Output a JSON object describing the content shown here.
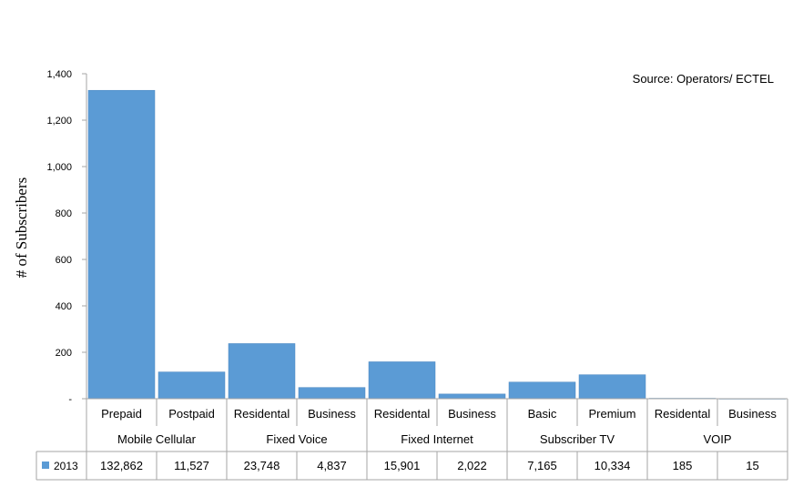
{
  "chart_data": {
    "type": "bar",
    "ylabel": "# of Subscribers",
    "source_note": "Source: Operators/ ECTEL",
    "ylim": [
      0,
      1400
    ],
    "yticks": [
      0,
      200,
      400,
      600,
      800,
      1000,
      1200,
      1400
    ],
    "ytick_labels": [
      "-",
      "200",
      "400",
      "600",
      "800",
      "1,000",
      "1,200",
      "1,400"
    ],
    "categories": [
      "Prepaid",
      "Postpaid",
      "Residental",
      "Business",
      "Residental",
      "Business",
      "Basic",
      "Premium",
      "Residental",
      "Business"
    ],
    "groups": [
      {
        "label": "Mobile Cellular",
        "span": 2
      },
      {
        "label": "Fixed Voice",
        "span": 2
      },
      {
        "label": "Fixed Internet",
        "span": 2
      },
      {
        "label": "Subscriber TV",
        "span": 2
      },
      {
        "label": "VOIP",
        "span": 2
      }
    ],
    "series": [
      {
        "name": "2013",
        "color": "#5b9bd5",
        "bar_values": [
          1328.62,
          115.27,
          237.48,
          48.37,
          159.01,
          20.22,
          71.65,
          103.34,
          1.85,
          0.15
        ],
        "table_values": [
          "132,862",
          "11,527",
          "23,748",
          "4,837",
          "15,901",
          "2,022",
          "7,165",
          "10,334",
          "185",
          "15"
        ]
      }
    ],
    "grid": false,
    "legend": "in-table"
  }
}
